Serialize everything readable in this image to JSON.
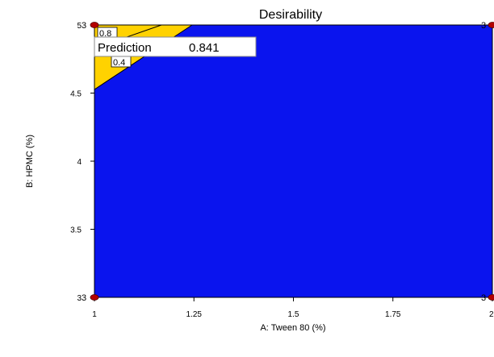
{
  "chart_data": {
    "type": "contour",
    "title": "Desirability",
    "xlabel": "A: Tween 80 (%)",
    "ylabel": "B: HPMC (%)",
    "xlim": [
      1,
      2
    ],
    "ylim": [
      3,
      5
    ],
    "x_ticks": [
      "1",
      "1.25",
      "1.5",
      "1.75",
      "2"
    ],
    "y_ticks": [
      "3",
      "3.5",
      "4",
      "4.5",
      "5"
    ],
    "x_tick_values": [
      1,
      1.25,
      1.5,
      1.75,
      2
    ],
    "y_tick_values": [
      3,
      3.5,
      4,
      4.5,
      5
    ],
    "contour_levels": [
      {
        "label": "0.8",
        "value": 0.8
      },
      {
        "label": "0.4",
        "value": 0.4
      }
    ],
    "prediction": {
      "label": "Prediction",
      "value": "0.841"
    },
    "design_points": [
      {
        "x": 1,
        "y": 5,
        "label": "3"
      },
      {
        "x": 2,
        "y": 5,
        "label": "3"
      },
      {
        "x": 1,
        "y": 3,
        "label": "3"
      },
      {
        "x": 2,
        "y": 3,
        "label": "3"
      }
    ],
    "colors": {
      "background_region": "#0a14ee",
      "high_region": "#ffe60f",
      "mid_region": "#ffd200",
      "design_point": "#b30000",
      "contour_line": "#000000"
    }
  }
}
